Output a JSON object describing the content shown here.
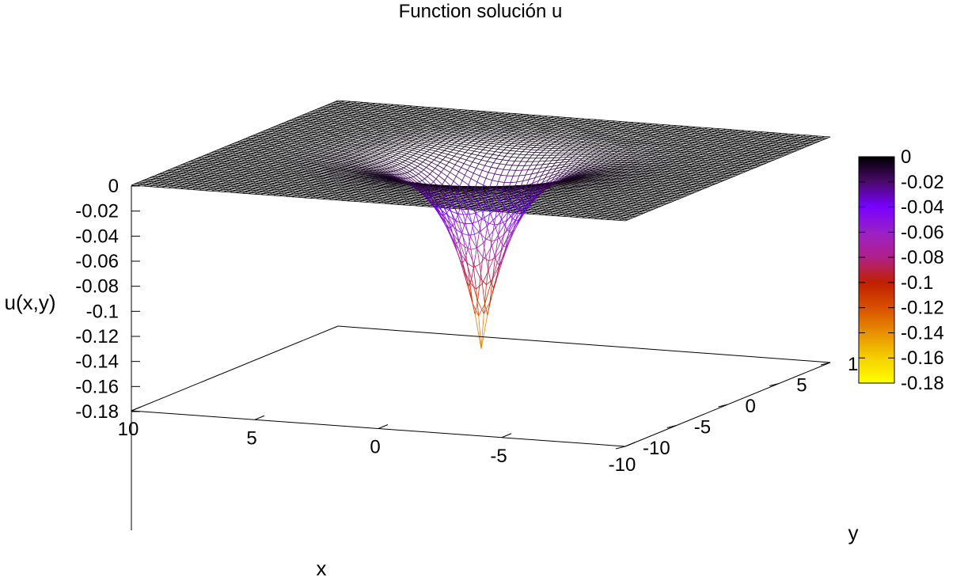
{
  "chart_data": {
    "type": "surface",
    "title": "Function solución u",
    "xlabel": "x",
    "ylabel": "y",
    "zlabel": "u(x,y)",
    "xlim": [
      -10,
      10
    ],
    "ylim": [
      -10,
      10
    ],
    "zlim": [
      -0.18,
      0
    ],
    "x_ticks": [
      "10",
      "5",
      "0",
      "-5",
      "-10"
    ],
    "y_ticks": [
      "-10",
      "-5",
      "0",
      "5",
      "10"
    ],
    "z_ticks": [
      "0",
      "-0.02",
      "-0.04",
      "-0.06",
      "-0.08",
      "-0.1",
      "-0.12",
      "-0.14",
      "-0.16",
      "-0.18"
    ],
    "colorbar": {
      "range": [
        -0.18,
        0
      ],
      "ticks": [
        "0",
        "-0.02",
        "-0.04",
        "-0.06",
        "-0.08",
        "-0.1",
        "-0.12",
        "-0.14",
        "-0.16",
        "-0.18"
      ],
      "colors": [
        "#000000",
        "#4a0a6b",
        "#7a00ff",
        "#9a20c8",
        "#b0208a",
        "#c02000",
        "#d85000",
        "#e89000",
        "#f5d000",
        "#ffff00"
      ]
    },
    "surface": {
      "min_value": -0.15,
      "min_location": [
        0,
        0
      ],
      "edge_value": 0
    },
    "grid": false,
    "legend": "none"
  }
}
